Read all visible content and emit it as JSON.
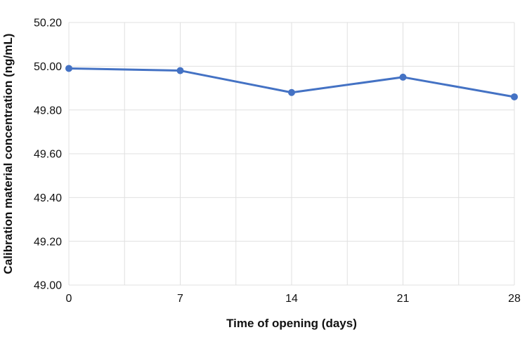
{
  "chart_data": {
    "type": "line",
    "title": "",
    "xlabel": "Time of opening (days)",
    "ylabel": "Calibration material concentration (ng/mL)",
    "x": [
      0,
      7,
      14,
      21,
      28
    ],
    "series": [
      {
        "name": "Calibration material concentration",
        "values": [
          49.99,
          49.98,
          49.88,
          49.95,
          49.86
        ]
      }
    ],
    "x_ticks": [
      0,
      7,
      14,
      21,
      28
    ],
    "y_ticks": [
      49.0,
      49.2,
      49.4,
      49.6,
      49.8,
      50.0,
      50.2
    ],
    "y_tick_format_decimals": 2,
    "xlim": [
      0,
      28
    ],
    "ylim": [
      49.0,
      50.2
    ],
    "x_grid_step": 3.5,
    "y_grid_step": 0.2,
    "grid": true,
    "legend": "none",
    "colors": {
      "line": "#4472C4",
      "marker": "#4472C4",
      "grid": "#e0e0e0",
      "text": "#111111",
      "background": "#ffffff"
    },
    "marker_radius": 5,
    "line_width": 3
  }
}
